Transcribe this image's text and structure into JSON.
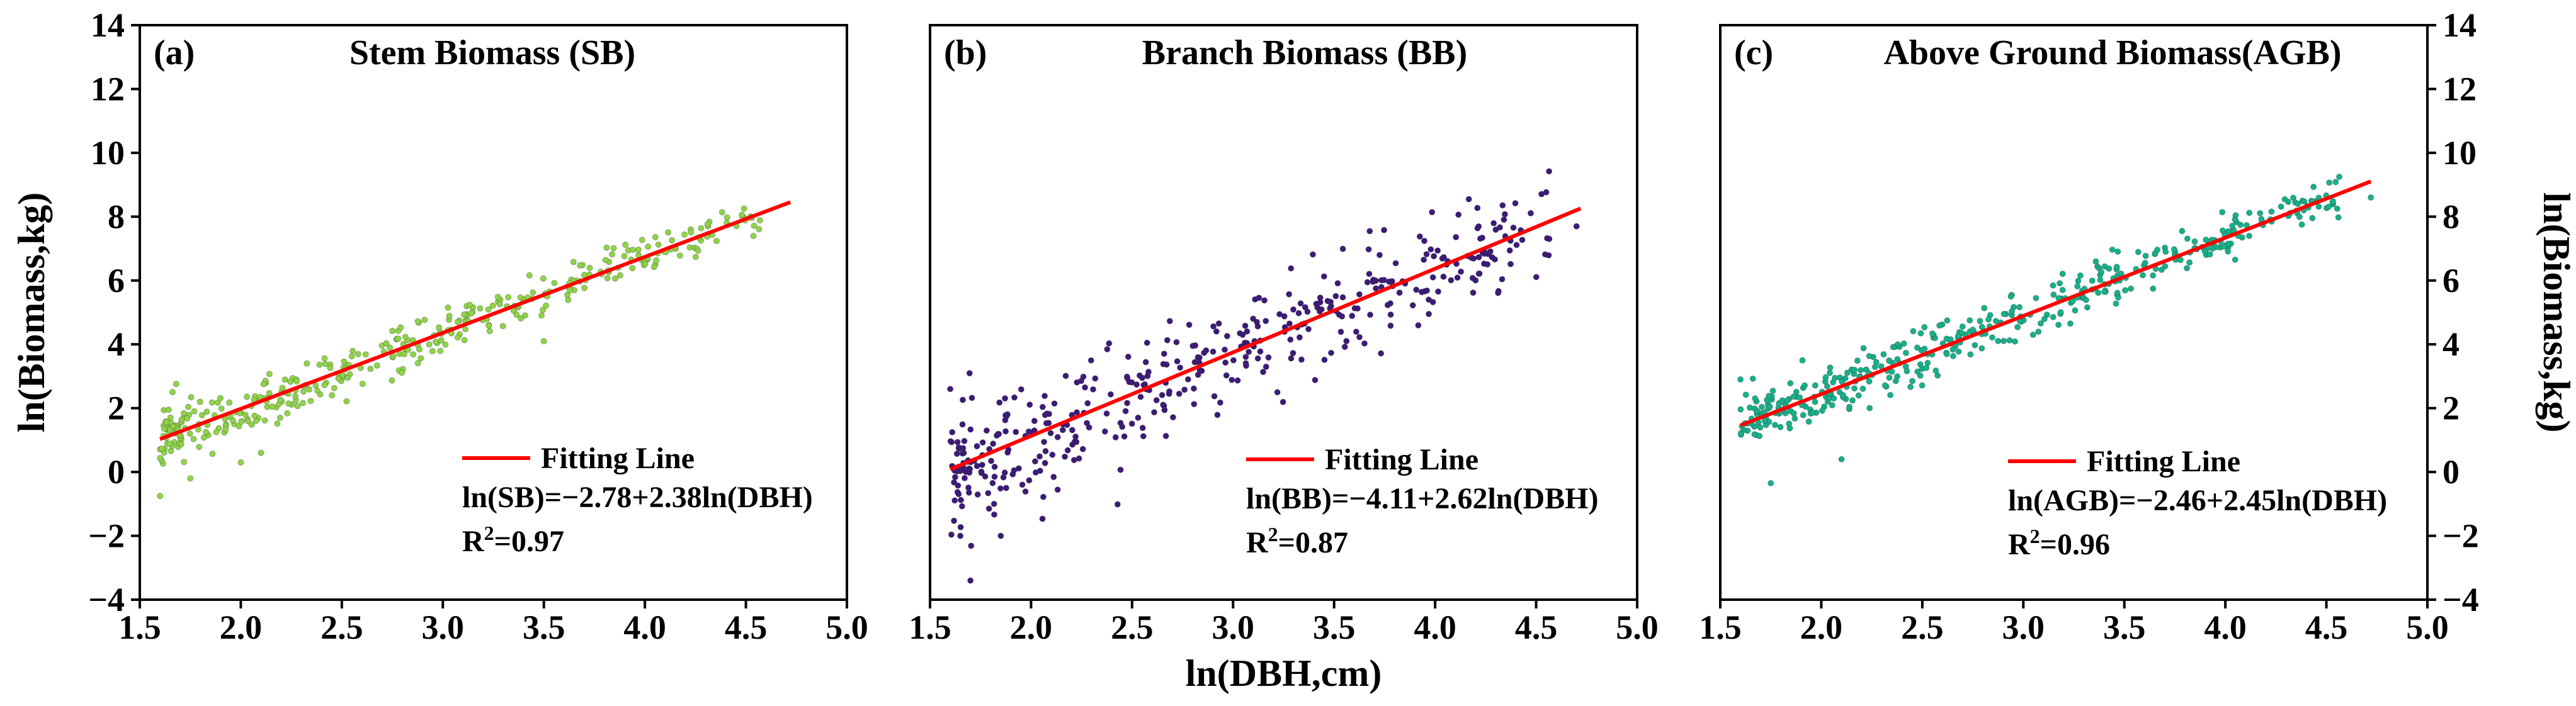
{
  "figure": {
    "y_label_left": "ln(Biomass,kg)",
    "y_label_right": "ln(Biomass,kg)",
    "x_label": "ln(DBH,cm)"
  },
  "chart_data": [
    {
      "type": "scatter",
      "panel_label": "(a)",
      "title": "Stem Biomass (SB)",
      "xlim": [
        1.5,
        5.0
      ],
      "ylim": [
        -4,
        14
      ],
      "xticks": [
        "1.5",
        "2.0",
        "2.5",
        "3.0",
        "3.5",
        "4.0",
        "4.5",
        "5.0"
      ],
      "yticks": [
        "-4",
        "-2",
        "0",
        "2",
        "4",
        "6",
        "8",
        "10",
        "12",
        "14"
      ],
      "point_color": "#8fd448",
      "line_color": "#ff0000",
      "fit": {
        "intercept": -2.78,
        "slope": 2.38,
        "x_range": [
          1.6,
          4.72
        ]
      },
      "noise": 0.38,
      "n_points": 380,
      "seed": 11,
      "extra_points": [
        [
          1.6,
          -0.75
        ],
        [
          1.75,
          -0.2
        ],
        [
          2.0,
          0.3
        ],
        [
          3.5,
          4.1
        ],
        [
          2.1,
          0.6
        ]
      ],
      "legend": {
        "line_label": "Fitting Line",
        "equation": "ln(SB)=−2.78+2.38ln(DBH)",
        "r2_prefix": "R",
        "r2_sup": "2",
        "r2_value": "=0.97"
      }
    },
    {
      "type": "scatter",
      "panel_label": "(b)",
      "title": "Branch Biomass (BB)",
      "xlim": [
        1.5,
        5.0
      ],
      "ylim": [
        -4,
        14
      ],
      "xticks": [
        "1.5",
        "2.0",
        "2.5",
        "3.0",
        "3.5",
        "4.0",
        "4.5",
        "5.0"
      ],
      "yticks": [],
      "point_color": "#3d1a78",
      "line_color": "#ff0000",
      "fit": {
        "intercept": -4.11,
        "slope": 2.62,
        "x_range": [
          1.6,
          4.72
        ]
      },
      "noise": 0.85,
      "n_points": 420,
      "seed": 23,
      "extra_points": [
        [
          1.7,
          -3.4
        ],
        [
          1.65,
          -2.0
        ],
        [
          1.85,
          -2.0
        ],
        [
          1.6,
          2.6
        ],
        [
          4.7,
          7.7
        ]
      ],
      "legend": {
        "line_label": "Fitting Line",
        "equation": "ln(BB)=−4.11+2.62ln(DBH)",
        "r2_prefix": "R",
        "r2_sup": "2",
        "r2_value": "=0.87"
      }
    },
    {
      "type": "scatter",
      "panel_label": "(c)",
      "title": "Above Ground Biomass(AGB)",
      "xlim": [
        1.5,
        5.0
      ],
      "ylim": [
        -4,
        14
      ],
      "xticks": [
        "1.5",
        "2.0",
        "2.5",
        "3.0",
        "3.5",
        "4.0",
        "4.5",
        "5.0"
      ],
      "yticks": [
        "-4",
        "-2",
        "0",
        "2",
        "4",
        "6",
        "8",
        "10",
        "12",
        "14"
      ],
      "point_color": "#16b08a",
      "line_color": "#ff0000",
      "fit": {
        "intercept": -2.46,
        "slope": 2.45,
        "x_range": [
          1.6,
          4.72
        ]
      },
      "noise": 0.38,
      "n_points": 420,
      "seed": 37,
      "extra_points": [
        [
          1.75,
          -0.35
        ],
        [
          2.1,
          0.4
        ],
        [
          1.6,
          2.9
        ],
        [
          4.72,
          8.6
        ]
      ],
      "legend": {
        "line_label": "Fitting Line",
        "equation": "ln(AGB)=−2.46+2.45ln(DBH)",
        "r2_prefix": "R",
        "r2_sup": "2",
        "r2_value": "=0.96"
      }
    }
  ]
}
